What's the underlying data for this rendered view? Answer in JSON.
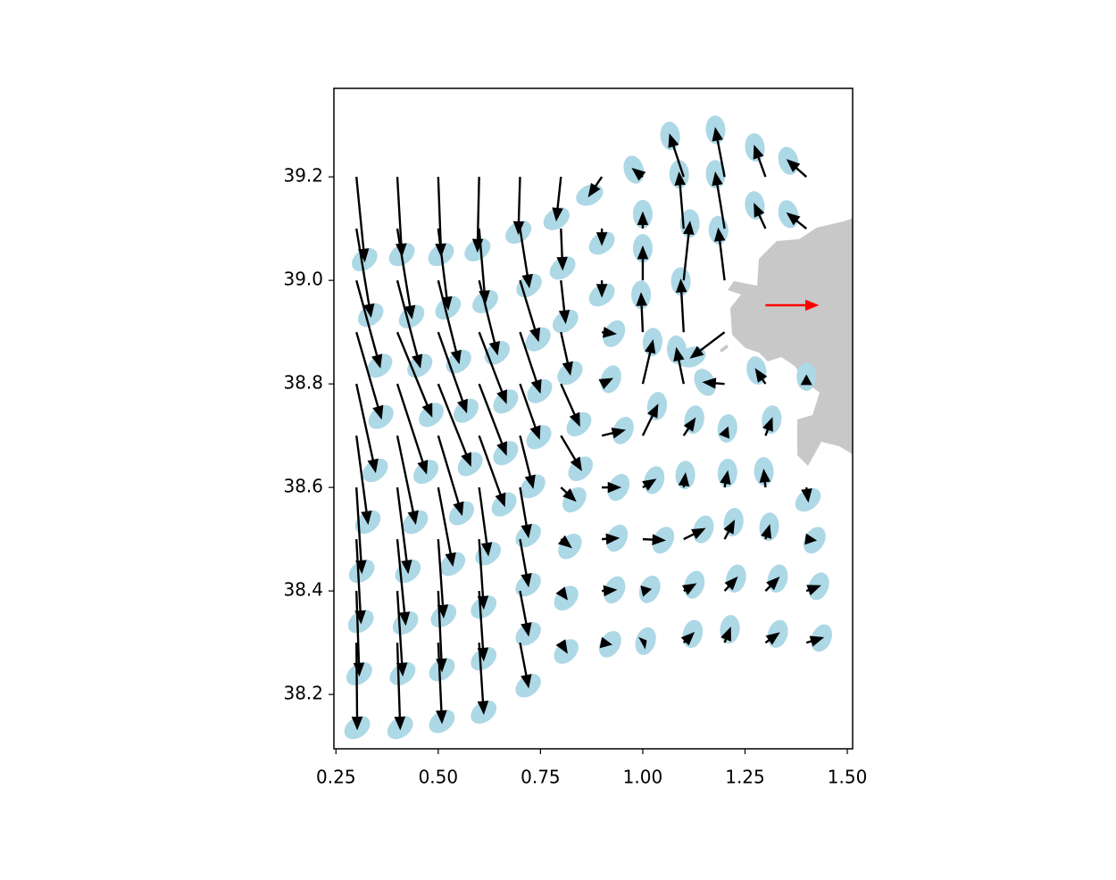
{
  "chart_data": {
    "type": "quiver",
    "xlim": [
      0.245,
      1.513
    ],
    "ylim": [
      38.095,
      39.371
    ],
    "xticks": [
      0.25,
      {
        "value": 0.5,
        "label": "0.50"
      },
      0.75,
      {
        "value": 1,
        "label": "1.00"
      },
      1.25,
      {
        "value": 1.5,
        "label": "1.50"
      }
    ],
    "yticks": [
      38.2,
      38.4,
      38.6,
      38.8,
      39.0,
      39.2
    ],
    "color": "#000000",
    "ellipse_color": "#add8e6",
    "key": {
      "x": 1.3,
      "y": 38.952,
      "u": 0.124,
      "v": 0,
      "color": "#ff0000"
    },
    "arrows": [
      {
        "x": 0.3,
        "y": 39.2,
        "u": 0.02,
        "v": -0.16
      },
      {
        "x": 0.3,
        "y": 39.1,
        "u": 0.035,
        "v": -0.167
      },
      {
        "x": 0.3,
        "y": 39.0,
        "u": 0.057,
        "v": -0.165
      },
      {
        "x": 0.3,
        "y": 38.9,
        "u": 0.06,
        "v": -0.164
      },
      {
        "x": 0.3,
        "y": 38.8,
        "u": 0.046,
        "v": -0.167
      },
      {
        "x": 0.3,
        "y": 38.7,
        "u": 0.028,
        "v": -0.167
      },
      {
        "x": 0.3,
        "y": 38.6,
        "u": 0.013,
        "v": -0.162
      },
      {
        "x": 0.3,
        "y": 38.5,
        "u": 0.011,
        "v": -0.159
      },
      {
        "x": 0.3,
        "y": 38.4,
        "u": 0.007,
        "v": -0.16
      },
      {
        "x": 0.3,
        "y": 38.3,
        "u": 0.002,
        "v": -0.164
      },
      {
        "x": 0.4,
        "y": 39.2,
        "u": 0.011,
        "v": -0.15
      },
      {
        "x": 0.4,
        "y": 39.1,
        "u": 0.035,
        "v": -0.17
      },
      {
        "x": 0.4,
        "y": 39.0,
        "u": 0.055,
        "v": -0.165
      },
      {
        "x": 0.4,
        "y": 38.9,
        "u": 0.083,
        "v": -0.16
      },
      {
        "x": 0.4,
        "y": 38.8,
        "u": 0.07,
        "v": -0.17
      },
      {
        "x": 0.4,
        "y": 38.7,
        "u": 0.044,
        "v": -0.167
      },
      {
        "x": 0.4,
        "y": 38.6,
        "u": 0.026,
        "v": -0.162
      },
      {
        "x": 0.4,
        "y": 38.5,
        "u": 0.02,
        "v": -0.162
      },
      {
        "x": 0.4,
        "y": 38.4,
        "u": 0.013,
        "v": -0.16
      },
      {
        "x": 0.4,
        "y": 38.3,
        "u": 0.007,
        "v": -0.164
      },
      {
        "x": 0.5,
        "y": 39.2,
        "u": 0.007,
        "v": -0.15
      },
      {
        "x": 0.5,
        "y": 39.1,
        "u": 0.024,
        "v": -0.153
      },
      {
        "x": 0.5,
        "y": 39.0,
        "u": 0.05,
        "v": -0.157
      },
      {
        "x": 0.5,
        "y": 38.9,
        "u": 0.068,
        "v": -0.152
      },
      {
        "x": 0.5,
        "y": 38.8,
        "u": 0.078,
        "v": -0.155
      },
      {
        "x": 0.5,
        "y": 38.7,
        "u": 0.057,
        "v": -0.15
      },
      {
        "x": 0.5,
        "y": 38.6,
        "u": 0.035,
        "v": -0.148
      },
      {
        "x": 0.5,
        "y": 38.5,
        "u": 0.013,
        "v": -0.148
      },
      {
        "x": 0.5,
        "y": 38.4,
        "u": 0.009,
        "v": -0.152
      },
      {
        "x": 0.5,
        "y": 38.3,
        "u": 0.009,
        "v": -0.152
      },
      {
        "x": 0.6,
        "y": 39.2,
        "u": -0.004,
        "v": -0.141
      },
      {
        "x": 0.6,
        "y": 39.1,
        "u": 0.015,
        "v": -0.141
      },
      {
        "x": 0.6,
        "y": 39.0,
        "u": 0.044,
        "v": -0.14
      },
      {
        "x": 0.6,
        "y": 38.9,
        "u": 0.065,
        "v": -0.134
      },
      {
        "x": 0.6,
        "y": 38.8,
        "u": 0.065,
        "v": -0.134
      },
      {
        "x": 0.6,
        "y": 38.7,
        "u": 0.061,
        "v": -0.133
      },
      {
        "x": 0.6,
        "y": 38.6,
        "u": 0.022,
        "v": -0.128
      },
      {
        "x": 0.6,
        "y": 38.5,
        "u": 0.011,
        "v": -0.131
      },
      {
        "x": 0.6,
        "y": 38.4,
        "u": 0.011,
        "v": -0.131
      },
      {
        "x": 0.6,
        "y": 38.3,
        "u": 0.011,
        "v": -0.134
      },
      {
        "x": 0.7,
        "y": 39.2,
        "u": -0.004,
        "v": -0.107
      },
      {
        "x": 0.7,
        "y": 39.1,
        "u": 0.022,
        "v": -0.11
      },
      {
        "x": 0.7,
        "y": 39.0,
        "u": 0.044,
        "v": -0.114
      },
      {
        "x": 0.7,
        "y": 38.9,
        "u": 0.048,
        "v": -0.114
      },
      {
        "x": 0.7,
        "y": 38.8,
        "u": 0.046,
        "v": -0.103
      },
      {
        "x": 0.7,
        "y": 38.7,
        "u": 0.031,
        "v": -0.098
      },
      {
        "x": 0.7,
        "y": 38.6,
        "u": 0.02,
        "v": -0.093
      },
      {
        "x": 0.7,
        "y": 38.5,
        "u": 0.02,
        "v": -0.088
      },
      {
        "x": 0.7,
        "y": 38.4,
        "u": 0.02,
        "v": -0.083
      },
      {
        "x": 0.7,
        "y": 38.3,
        "u": 0.02,
        "v": -0.083
      },
      {
        "x": 0.8,
        "y": 39.2,
        "u": -0.011,
        "v": -0.081
      },
      {
        "x": 0.8,
        "y": 39.1,
        "u": 0.004,
        "v": -0.076
      },
      {
        "x": 0.8,
        "y": 39.0,
        "u": 0.011,
        "v": -0.079
      },
      {
        "x": 0.8,
        "y": 38.9,
        "u": 0.022,
        "v": -0.079
      },
      {
        "x": 0.8,
        "y": 38.8,
        "u": 0.044,
        "v": -0.078
      },
      {
        "x": 0.8,
        "y": 38.7,
        "u": 0.048,
        "v": -0.064
      },
      {
        "x": 0.8,
        "y": 38.6,
        "u": 0.033,
        "v": -0.024
      },
      {
        "x": 0.8,
        "y": 38.5,
        "u": 0.022,
        "v": -0.014
      },
      {
        "x": 0.8,
        "y": 38.4,
        "u": 0.013,
        "v": -0.014
      },
      {
        "x": 0.8,
        "y": 38.3,
        "u": 0.013,
        "v": -0.017
      },
      {
        "x": 0.9,
        "y": 39.2,
        "u": -0.03,
        "v": -0.035
      },
      {
        "x": 0.9,
        "y": 39.1,
        "u": 0,
        "v": -0.028
      },
      {
        "x": 0.9,
        "y": 39.0,
        "u": 0,
        "v": -0.028
      },
      {
        "x": 0.9,
        "y": 38.9,
        "u": 0.03,
        "v": -0.003
      },
      {
        "x": 0.9,
        "y": 38.8,
        "u": 0.022,
        "v": 0.009
      },
      {
        "x": 0.9,
        "y": 38.7,
        "u": 0.052,
        "v": 0.01
      },
      {
        "x": 0.9,
        "y": 38.6,
        "u": 0.041,
        "v": 0
      },
      {
        "x": 0.9,
        "y": 38.5,
        "u": 0.037,
        "v": 0.002
      },
      {
        "x": 0.9,
        "y": 38.4,
        "u": 0.031,
        "v": 0.002
      },
      {
        "x": 0.9,
        "y": 38.3,
        "u": 0.02,
        "v": -0.003
      },
      {
        "x": 1.0,
        "y": 39.2,
        "u": -0.022,
        "v": 0.014
      },
      {
        "x": 1.0,
        "y": 39.1,
        "u": 0,
        "v": 0.028
      },
      {
        "x": 1.0,
        "y": 39.0,
        "u": 0,
        "v": 0.062
      },
      {
        "x": 1.0,
        "y": 38.9,
        "u": -0.004,
        "v": 0.072
      },
      {
        "x": 1.0,
        "y": 38.8,
        "u": 0.024,
        "v": 0.081
      },
      {
        "x": 1.0,
        "y": 38.7,
        "u": 0.035,
        "v": 0.057
      },
      {
        "x": 1.0,
        "y": 38.6,
        "u": 0.028,
        "v": 0.014
      },
      {
        "x": 1.0,
        "y": 38.5,
        "u": 0.05,
        "v": -0.002
      },
      {
        "x": 1.0,
        "y": 38.4,
        "u": 0.017,
        "v": 0.003
      },
      {
        "x": 1.0,
        "y": 38.3,
        "u": 0.007,
        "v": 0.003
      },
      {
        "x": 1.1,
        "y": 39.2,
        "u": -0.033,
        "v": 0.079
      },
      {
        "x": 1.1,
        "y": 39.1,
        "u": -0.011,
        "v": 0.105
      },
      {
        "x": 1.1,
        "y": 39.0,
        "u": 0.015,
        "v": 0.11
      },
      {
        "x": 1.1,
        "y": 38.9,
        "u": -0.007,
        "v": 0.098
      },
      {
        "x": 1.1,
        "y": 38.8,
        "u": -0.017,
        "v": 0.066
      },
      {
        "x": 1.1,
        "y": 38.7,
        "u": 0.026,
        "v": 0.031
      },
      {
        "x": 1.1,
        "y": 38.6,
        "u": 0.004,
        "v": 0.024
      },
      {
        "x": 1.1,
        "y": 38.5,
        "u": 0.048,
        "v": 0.019
      },
      {
        "x": 1.1,
        "y": 38.4,
        "u": 0.026,
        "v": 0.012
      },
      {
        "x": 1.1,
        "y": 38.3,
        "u": 0.022,
        "v": 0.017
      },
      {
        "x": 1.2,
        "y": 39.2,
        "u": -0.022,
        "v": 0.091
      },
      {
        "x": 1.2,
        "y": 39.1,
        "u": -0.022,
        "v": 0.105
      },
      {
        "x": 1.2,
        "y": 39.0,
        "u": -0.015,
        "v": 0.097
      },
      {
        "x": 1.2,
        "y": 38.9,
        "u": -0.08,
        "v": -0.048
      },
      {
        "x": 1.2,
        "y": 38.8,
        "u": -0.048,
        "v": 0.003
      },
      {
        "x": 1.2,
        "y": 38.7,
        "u": 0.007,
        "v": 0.014
      },
      {
        "x": 1.2,
        "y": 38.6,
        "u": 0.007,
        "v": 0.028
      },
      {
        "x": 1.2,
        "y": 38.5,
        "u": 0.022,
        "v": 0.033
      },
      {
        "x": 1.2,
        "y": 38.4,
        "u": 0.028,
        "v": 0.024
      },
      {
        "x": 1.2,
        "y": 38.3,
        "u": 0.013,
        "v": 0.026
      },
      {
        "x": 1.3,
        "y": 39.2,
        "u": -0.026,
        "v": 0.057
      },
      {
        "x": 1.3,
        "y": 39.1,
        "u": -0.026,
        "v": 0.045
      },
      {
        "x": 1.3,
        "y": 38.8,
        "u": -0.022,
        "v": 0.026
      },
      {
        "x": 1.3,
        "y": 38.7,
        "u": 0.015,
        "v": 0.031
      },
      {
        "x": 1.3,
        "y": 38.6,
        "u": -0.004,
        "v": 0.031
      },
      {
        "x": 1.3,
        "y": 38.5,
        "u": 0.009,
        "v": 0.024
      },
      {
        "x": 1.3,
        "y": 38.4,
        "u": 0.03,
        "v": 0.024
      },
      {
        "x": 1.3,
        "y": 38.3,
        "u": 0.03,
        "v": 0.017
      },
      {
        "x": 1.4,
        "y": 39.2,
        "u": -0.044,
        "v": 0.031
      },
      {
        "x": 1.4,
        "y": 39.1,
        "u": -0.044,
        "v": 0.028
      },
      {
        "x": 1.4,
        "y": 38.8,
        "u": 0,
        "v": 0.014
      },
      {
        "x": 1.4,
        "y": 38.6,
        "u": 0.004,
        "v": -0.024
      },
      {
        "x": 1.4,
        "y": 38.5,
        "u": 0.02,
        "v": -0.002
      },
      {
        "x": 1.4,
        "y": 38.4,
        "u": 0.03,
        "v": 0.009
      },
      {
        "x": 1.4,
        "y": 38.3,
        "u": 0.037,
        "v": 0.009
      }
    ]
  }
}
